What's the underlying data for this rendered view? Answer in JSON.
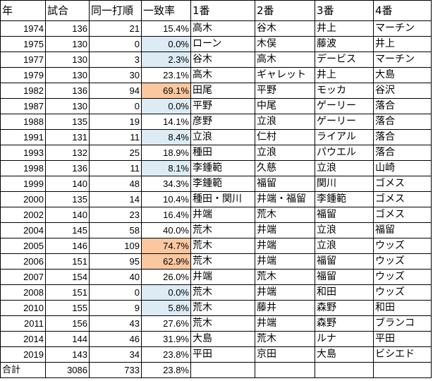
{
  "headers": [
    "年",
    "試合",
    "同一打順",
    "一致率",
    "1番",
    "2番",
    "3番",
    "4番"
  ],
  "rows": [
    {
      "year": "1974",
      "games": "136",
      "same": "21",
      "rate": "15.4%",
      "b1": "高木",
      "b2": "谷木",
      "b3": "井上",
      "b4": "マーチン",
      "hl": ""
    },
    {
      "year": "1975",
      "games": "130",
      "same": "0",
      "rate": "0.0%",
      "b1": "ローン",
      "b2": "木俣",
      "b3": "藤波",
      "b4": "井上",
      "hl": "lo"
    },
    {
      "year": "1977",
      "games": "130",
      "same": "3",
      "rate": "2.3%",
      "b1": "谷木",
      "b2": "高木",
      "b3": "デービス",
      "b4": "マーチン",
      "hl": "lo"
    },
    {
      "year": "1979",
      "games": "130",
      "same": "30",
      "rate": "23.1%",
      "b1": "高木",
      "b2": "ギャレット",
      "b3": "井上",
      "b4": "大島",
      "hl": ""
    },
    {
      "year": "1982",
      "games": "136",
      "same": "94",
      "rate": "69.1%",
      "b1": "田尾",
      "b2": "平野",
      "b3": "モッカ",
      "b4": "谷沢",
      "hl": "hi"
    },
    {
      "year": "1987",
      "games": "130",
      "same": "0",
      "rate": "0.0%",
      "b1": "平野",
      "b2": "中尾",
      "b3": "ゲーリー",
      "b4": "落合",
      "hl": "lo"
    },
    {
      "year": "1988",
      "games": "135",
      "same": "19",
      "rate": "14.1%",
      "b1": "彦野",
      "b2": "立浪",
      "b3": "ゲーリー",
      "b4": "落合",
      "hl": ""
    },
    {
      "year": "1991",
      "games": "131",
      "same": "11",
      "rate": "8.4%",
      "b1": "立浪",
      "b2": "仁村",
      "b3": "ライアル",
      "b4": "落合",
      "hl": "lo"
    },
    {
      "year": "1993",
      "games": "132",
      "same": "25",
      "rate": "18.9%",
      "b1": "種田",
      "b2": "立浪",
      "b3": "パウエル",
      "b4": "落合",
      "hl": ""
    },
    {
      "year": "1998",
      "games": "136",
      "same": "11",
      "rate": "8.1%",
      "b1": "李鍾範",
      "b2": "久慈",
      "b3": "立浪",
      "b4": "山崎",
      "hl": "lo"
    },
    {
      "year": "1999",
      "games": "140",
      "same": "48",
      "rate": "34.3%",
      "b1": "李鍾範",
      "b2": "福留",
      "b3": "関川",
      "b4": "ゴメス",
      "hl": ""
    },
    {
      "year": "2000",
      "games": "135",
      "same": "14",
      "rate": "10.4%",
      "b1": "種田・関川",
      "b2": "井端・福留",
      "b3": "李鍾範",
      "b4": "ゴメス",
      "hl": ""
    },
    {
      "year": "2002",
      "games": "140",
      "same": "23",
      "rate": "16.4%",
      "b1": "井端",
      "b2": "荒木",
      "b3": "福留",
      "b4": "ゴメス",
      "hl": ""
    },
    {
      "year": "2004",
      "games": "145",
      "same": "58",
      "rate": "40.0%",
      "b1": "荒木",
      "b2": "井端",
      "b3": "立浪",
      "b4": "福留",
      "hl": ""
    },
    {
      "year": "2005",
      "games": "146",
      "same": "109",
      "rate": "74.7%",
      "b1": "荒木",
      "b2": "井端",
      "b3": "立浪",
      "b4": "ウッズ",
      "hl": "hi"
    },
    {
      "year": "2006",
      "games": "151",
      "same": "95",
      "rate": "62.9%",
      "b1": "荒木",
      "b2": "井端",
      "b3": "福留",
      "b4": "ウッズ",
      "hl": "hi"
    },
    {
      "year": "2007",
      "games": "154",
      "same": "40",
      "rate": "26.0%",
      "b1": "井端",
      "b2": "荒木",
      "b3": "福留",
      "b4": "ウッズ",
      "hl": ""
    },
    {
      "year": "2008",
      "games": "151",
      "same": "0",
      "rate": "0.0%",
      "b1": "荒木",
      "b2": "井端",
      "b3": "和田",
      "b4": "ウッズ",
      "hl": "lo"
    },
    {
      "year": "2010",
      "games": "155",
      "same": "9",
      "rate": "5.8%",
      "b1": "荒木",
      "b2": "藤井",
      "b3": "森野",
      "b4": "和田",
      "hl": "lo"
    },
    {
      "year": "2011",
      "games": "156",
      "same": "43",
      "rate": "27.6%",
      "b1": "荒木",
      "b2": "井端",
      "b3": "森野",
      "b4": "ブランコ",
      "hl": ""
    },
    {
      "year": "2014",
      "games": "144",
      "same": "46",
      "rate": "31.9%",
      "b1": "大島",
      "b2": "荒木",
      "b3": "ルナ",
      "b4": "平田",
      "hl": ""
    },
    {
      "year": "2019",
      "games": "143",
      "same": "34",
      "rate": "23.8%",
      "b1": "平田",
      "b2": "京田",
      "b3": "大島",
      "b4": "ビシエド",
      "hl": ""
    }
  ],
  "total": {
    "label": "合計",
    "games": "3086",
    "same": "733",
    "rate": "23.8%"
  },
  "colors": {
    "high_rate_fill": "#fbc79f",
    "low_rate_fill": "#dcebf4",
    "grid": "#000000"
  }
}
